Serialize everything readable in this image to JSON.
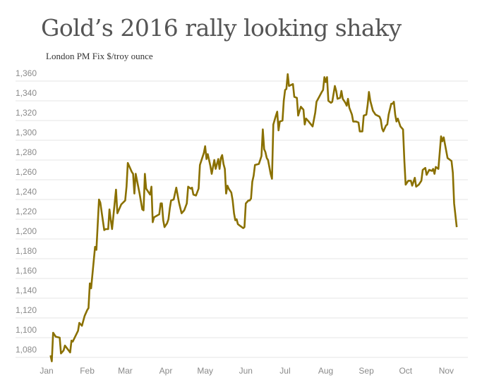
{
  "chart_data": {
    "type": "line",
    "title": "Gold’s 2016 rally looking shaky",
    "subtitle": "London PM Fix $/troy ounce",
    "xlabel": "",
    "ylabel": "",
    "ylim": [
      1080,
      1360
    ],
    "yticks": [
      "1,080",
      "1,100",
      "1,120",
      "1,140",
      "1,160",
      "1,180",
      "1,200",
      "1,220",
      "1,240",
      "1,260",
      "1,280",
      "1,300",
      "1,320",
      "1,340",
      "1,360"
    ],
    "xticks": [
      "Jan",
      "Feb",
      "Mar",
      "Apr",
      "May",
      "Jun",
      "Jul",
      "Aug",
      "Sep",
      "Oct",
      "Nov"
    ],
    "grid": "horizontal",
    "line_color": "#8a7000",
    "series": [
      {
        "x": [
          "2016-01-04",
          "2016-01-05",
          "2016-01-06",
          "2016-01-08",
          "2016-01-11",
          "2016-01-12",
          "2016-01-14",
          "2016-01-15",
          "2016-01-19",
          "2016-01-20",
          "2016-01-21",
          "2016-01-25",
          "2016-01-26",
          "2016-01-28",
          "2016-01-30",
          "2016-02-01",
          "2016-02-02",
          "2016-02-03",
          "2016-02-04",
          "2016-02-07",
          "2016-02-08",
          "2016-02-10",
          "2016-02-11",
          "2016-02-14",
          "2016-02-15",
          "2016-02-17",
          "2016-02-18",
          "2016-02-19",
          "2016-02-20",
          "2016-02-23",
          "2016-02-24",
          "2016-02-27",
          "2016-03-01",
          "2016-03-02",
          "2016-03-03",
          "2016-03-06",
          "2016-03-07",
          "2016-03-08",
          "2016-03-09",
          "2016-03-12",
          "2016-03-14",
          "2016-03-15",
          "2016-03-16",
          "2016-03-17",
          "2016-03-20",
          "2016-03-21",
          "2016-03-22",
          "2016-03-23",
          "2016-03-27",
          "2016-03-28",
          "2016-03-29",
          "2016-03-30",
          "2016-03-31",
          "2016-04-02",
          "2016-04-03",
          "2016-04-04",
          "2016-04-05",
          "2016-04-07",
          "2016-04-09",
          "2016-04-11",
          "2016-04-13",
          "2016-04-15",
          "2016-04-17",
          "2016-04-18",
          "2016-04-20",
          "2016-04-21",
          "2016-04-22",
          "2016-04-24",
          "2016-04-26",
          "2016-04-27",
          "2016-04-30",
          "2016-05-01",
          "2016-05-02",
          "2016-05-03",
          "2016-05-05",
          "2016-05-06",
          "2016-05-08",
          "2016-05-09",
          "2016-05-11",
          "2016-05-12",
          "2016-05-13",
          "2016-05-14",
          "2016-05-15",
          "2016-05-16",
          "2016-05-17",
          "2016-05-18",
          "2016-05-19",
          "2016-05-21",
          "2016-05-22",
          "2016-05-23",
          "2016-05-24",
          "2016-05-25",
          "2016-05-26",
          "2016-05-28",
          "2016-05-29",
          "2016-05-30",
          "2016-05-31",
          "2016-06-01",
          "2016-06-03",
          "2016-06-04",
          "2016-06-05",
          "2016-06-06",
          "2016-06-07",
          "2016-06-08",
          "2016-06-11",
          "2016-06-12",
          "2016-06-13",
          "2016-06-14",
          "2016-06-15",
          "2016-06-16",
          "2016-06-17",
          "2016-06-18",
          "2016-06-20",
          "2016-06-21",
          "2016-06-22",
          "2016-06-24",
          "2016-06-25",
          "2016-06-26",
          "2016-06-27",
          "2016-06-29",
          "2016-06-30",
          "2016-07-01",
          "2016-07-02",
          "2016-07-03",
          "2016-07-04",
          "2016-07-07",
          "2016-07-08",
          "2016-07-10",
          "2016-07-11",
          "2016-07-13",
          "2016-07-15",
          "2016-07-16",
          "2016-07-17",
          "2016-07-19",
          "2016-07-22",
          "2016-07-24",
          "2016-07-25",
          "2016-07-27",
          "2016-07-29",
          "2016-07-30",
          "2016-07-31",
          "2016-08-01",
          "2016-08-02",
          "2016-08-03",
          "2016-08-05",
          "2016-08-06",
          "2016-08-08",
          "2016-08-09",
          "2016-08-10",
          "2016-08-12",
          "2016-08-13",
          "2016-08-14",
          "2016-08-16",
          "2016-08-17",
          "2016-08-18",
          "2016-08-19",
          "2016-08-21",
          "2016-08-22",
          "2016-08-24",
          "2016-08-26",
          "2016-08-27",
          "2016-08-29",
          "2016-08-30",
          "2016-09-01",
          "2016-09-02",
          "2016-09-03",
          "2016-09-04",
          "2016-09-06",
          "2016-09-08",
          "2016-09-11",
          "2016-09-12",
          "2016-09-13",
          "2016-09-14",
          "2016-09-16",
          "2016-09-17",
          "2016-09-18",
          "2016-09-20",
          "2016-09-21",
          "2016-09-22",
          "2016-09-23",
          "2016-09-24",
          "2016-09-25",
          "2016-09-27",
          "2016-09-29",
          "2016-09-30",
          "2016-10-01",
          "2016-10-03",
          "2016-10-05",
          "2016-10-06",
          "2016-10-08",
          "2016-10-09",
          "2016-10-11",
          "2016-10-13",
          "2016-10-14",
          "2016-10-16",
          "2016-10-17",
          "2016-10-19",
          "2016-10-21",
          "2016-10-22",
          "2016-10-23",
          "2016-10-24",
          "2016-10-25",
          "2016-10-26",
          "2016-10-28",
          "2016-10-29",
          "2016-10-30",
          "2016-11-02",
          "2016-11-05",
          "2016-11-06",
          "2016-11-07",
          "2016-11-09"
        ],
        "values": [
          1082,
          1076,
          1105,
          1101,
          1100,
          1084,
          1087,
          1092,
          1085,
          1097,
          1096,
          1107,
          1115,
          1112,
          1122,
          1128,
          1130,
          1155,
          1150,
          1192,
          1189,
          1240,
          1237,
          1209,
          1210,
          1210,
          1230,
          1219,
          1210,
          1250,
          1226,
          1235,
          1239,
          1253,
          1277,
          1268,
          1266,
          1246,
          1266,
          1246,
          1230,
          1229,
          1266,
          1251,
          1245,
          1253,
          1217,
          1222,
          1225,
          1236,
          1236,
          1219,
          1212,
          1216,
          1220,
          1231,
          1239,
          1240,
          1252,
          1237,
          1226,
          1229,
          1236,
          1253,
          1251,
          1252,
          1245,
          1244,
          1251,
          1275,
          1287,
          1294,
          1281,
          1286,
          1274,
          1266,
          1280,
          1271,
          1281,
          1271,
          1282,
          1285,
          1276,
          1271,
          1246,
          1254,
          1251,
          1247,
          1239,
          1226,
          1219,
          1220,
          1215,
          1213,
          1212,
          1211,
          1212,
          1236,
          1239,
          1239,
          1241,
          1258,
          1264,
          1275,
          1276,
          1280,
          1284,
          1311,
          1291,
          1288,
          1282,
          1280,
          1266,
          1261,
          1316,
          1325,
          1329,
          1310,
          1319,
          1320,
          1340,
          1351,
          1352,
          1367,
          1355,
          1357,
          1344,
          1343,
          1325,
          1334,
          1331,
          1316,
          1322,
          1319,
          1314,
          1328,
          1339,
          1344,
          1349,
          1351,
          1364,
          1359,
          1364,
          1340,
          1338,
          1339,
          1355,
          1350,
          1342,
          1343,
          1350,
          1342,
          1338,
          1335,
          1342,
          1333,
          1326,
          1319,
          1319,
          1318,
          1309,
          1309,
          1325,
          1326,
          1336,
          1349,
          1340,
          1330,
          1326,
          1324,
          1321,
          1312,
          1309,
          1315,
          1316,
          1326,
          1337,
          1337,
          1339,
          1326,
          1319,
          1322,
          1314,
          1311,
          1279,
          1255,
          1259,
          1259,
          1254,
          1262,
          1253,
          1255,
          1259,
          1270,
          1272,
          1265,
          1270,
          1269,
          1271,
          1266,
          1273,
          1272,
          1271,
          1304,
          1299,
          1303,
          1282,
          1279,
          1267,
          1236,
          1212
        ]
      }
    ]
  }
}
